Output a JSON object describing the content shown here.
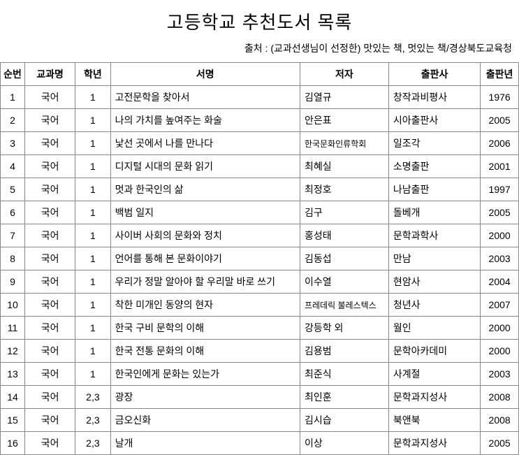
{
  "title": "고등학교 추천도서 목록",
  "source": "출처 : (교과선생님이 선정한) 맛있는 책, 멋있는 책/경상북도교육청",
  "columns": {
    "no": "순번",
    "subject": "교과명",
    "grade": "학년",
    "title": "서명",
    "author": "저자",
    "publisher": "출판사",
    "year": "출판년"
  },
  "rows": [
    {
      "no": "1",
      "subject": "국어",
      "grade": "1",
      "title": "고전문학을 찾아서",
      "author": "김열규",
      "publisher": "창작과비평사",
      "year": "1976",
      "smallAuthor": false
    },
    {
      "no": "2",
      "subject": "국어",
      "grade": "1",
      "title": "나의 가치를 높여주는 화술",
      "author": "안은표",
      "publisher": "시아출판사",
      "year": "2005",
      "smallAuthor": false
    },
    {
      "no": "3",
      "subject": "국어",
      "grade": "1",
      "title": "낯선 곳에서 나를 만나다",
      "author": "한국문화인류학회",
      "publisher": "일조각",
      "year": "2006",
      "smallAuthor": true
    },
    {
      "no": "4",
      "subject": "국어",
      "grade": "1",
      "title": "디지털 시대의 문화 읽기",
      "author": "최혜실",
      "publisher": "소명출판",
      "year": "2001",
      "smallAuthor": false
    },
    {
      "no": "5",
      "subject": "국어",
      "grade": "1",
      "title": "멋과 한국인의 삶",
      "author": "최정호",
      "publisher": "나남출판",
      "year": "1997",
      "smallAuthor": false
    },
    {
      "no": "6",
      "subject": "국어",
      "grade": "1",
      "title": "백범 일지",
      "author": "김구",
      "publisher": "돌베개",
      "year": "2005",
      "smallAuthor": false
    },
    {
      "no": "7",
      "subject": "국어",
      "grade": "1",
      "title": "사이버 사회의 문화와 정치",
      "author": "홍성태",
      "publisher": "문학과학사",
      "year": "2000",
      "smallAuthor": false
    },
    {
      "no": "8",
      "subject": "국어",
      "grade": "1",
      "title": "언어를 통해 본 문화이야기",
      "author": "김동섭",
      "publisher": "만남",
      "year": "2003",
      "smallAuthor": false
    },
    {
      "no": "9",
      "subject": "국어",
      "grade": "1",
      "title": "우리가 정말 알아야 할 우리말 바로 쓰기",
      "author": "이수열",
      "publisher": "현암사",
      "year": "2004",
      "smallAuthor": false
    },
    {
      "no": "10",
      "subject": "국어",
      "grade": "1",
      "title": "착한 미개인 동양의 현자",
      "author": "프레데릭 불레스텍스",
      "publisher": "청년사",
      "year": "2007",
      "smallAuthor": true
    },
    {
      "no": "11",
      "subject": "국어",
      "grade": "1",
      "title": "한국 구비 문학의 이해",
      "author": "강등학 외",
      "publisher": "월인",
      "year": "2000",
      "smallAuthor": false
    },
    {
      "no": "12",
      "subject": "국어",
      "grade": "1",
      "title": "한국 전통 문화의 이해",
      "author": "김용범",
      "publisher": "문학아카데미",
      "year": "2000",
      "smallAuthor": false
    },
    {
      "no": "13",
      "subject": "국어",
      "grade": "1",
      "title": "한국인에게 문화는 있는가",
      "author": "최준식",
      "publisher": "사계절",
      "year": "2003",
      "smallAuthor": false
    },
    {
      "no": "14",
      "subject": "국어",
      "grade": "2,3",
      "title": "광장",
      "author": "최인훈",
      "publisher": "문학과지성사",
      "year": "2008",
      "smallAuthor": false
    },
    {
      "no": "15",
      "subject": "국어",
      "grade": "2,3",
      "title": "금오신화",
      "author": "김시습",
      "publisher": "북앤북",
      "year": "2008",
      "smallAuthor": false
    },
    {
      "no": "16",
      "subject": "국어",
      "grade": "2,3",
      "title": "날개",
      "author": "이상",
      "publisher": "문학과지성사",
      "year": "2005",
      "smallAuthor": false
    }
  ]
}
